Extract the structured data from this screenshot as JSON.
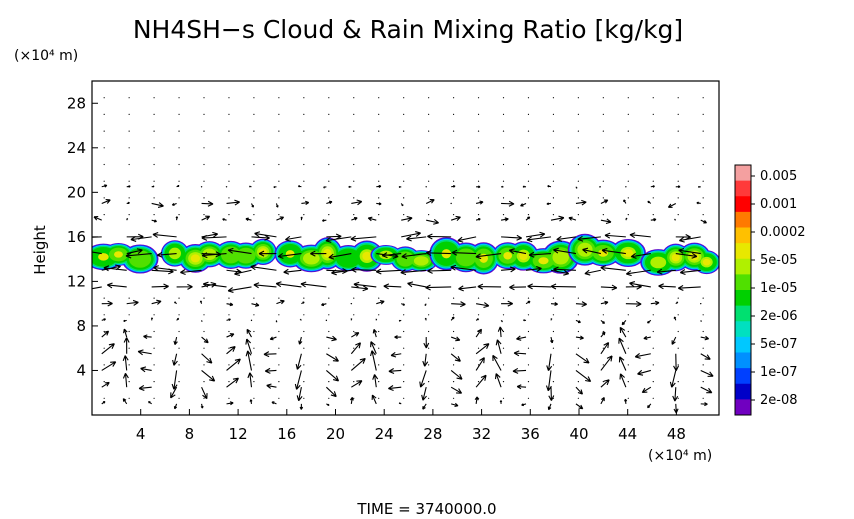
{
  "chart_data": {
    "type": "heatmap",
    "title": "NH4SH−s Cloud & Rain Mixing Ratio [kg/kg]",
    "xunit": "(×10⁴ m)",
    "yunit": "(×10⁴ m)",
    "ylabel": "Height",
    "time_label": "TIME  =  3740000.0",
    "xlim": [
      0,
      51.5
    ],
    "ylim": [
      0,
      30
    ],
    "x_ticks": [
      4,
      8,
      12,
      16,
      20,
      24,
      28,
      32,
      36,
      40,
      44,
      48
    ],
    "y_ticks": [
      4,
      8,
      12,
      16,
      20,
      24,
      28
    ],
    "colorbar": {
      "labels": [
        "0.005",
        "0.001",
        "0.0002",
        "5e-05",
        "1e-05",
        "2e-06",
        "5e-07",
        "1e-07",
        "2e-08"
      ],
      "colors": [
        "#f4a0a0",
        "#ff3a3a",
        "#ff0000",
        "#ff7a00",
        "#ffc000",
        "#e8e800",
        "#b0f000",
        "#50e000",
        "#00d000",
        "#00e070",
        "#00e0c0",
        "#00c8ff",
        "#0090ff",
        "#0040ff",
        "#0000c8",
        "#7000c0"
      ]
    },
    "cloud_cells": [
      {
        "x0": 0.0,
        "x1": 4.8,
        "y0": 12.8,
        "y1": 15.5
      },
      {
        "x0": 6.0,
        "x1": 15.0,
        "y0": 13.0,
        "y1": 15.8
      },
      {
        "x0": 15.5,
        "x1": 23.5,
        "y0": 12.8,
        "y1": 15.8
      },
      {
        "x0": 23.5,
        "x1": 28.0,
        "y0": 13.0,
        "y1": 15.3
      },
      {
        "x0": 28.5,
        "x1": 39.5,
        "y0": 12.7,
        "y1": 15.7
      },
      {
        "x0": 40.0,
        "x1": 44.5,
        "y0": 13.0,
        "y1": 16.0
      },
      {
        "x0": 45.5,
        "x1": 51.5,
        "y0": 12.7,
        "y1": 15.3
      }
    ]
  }
}
